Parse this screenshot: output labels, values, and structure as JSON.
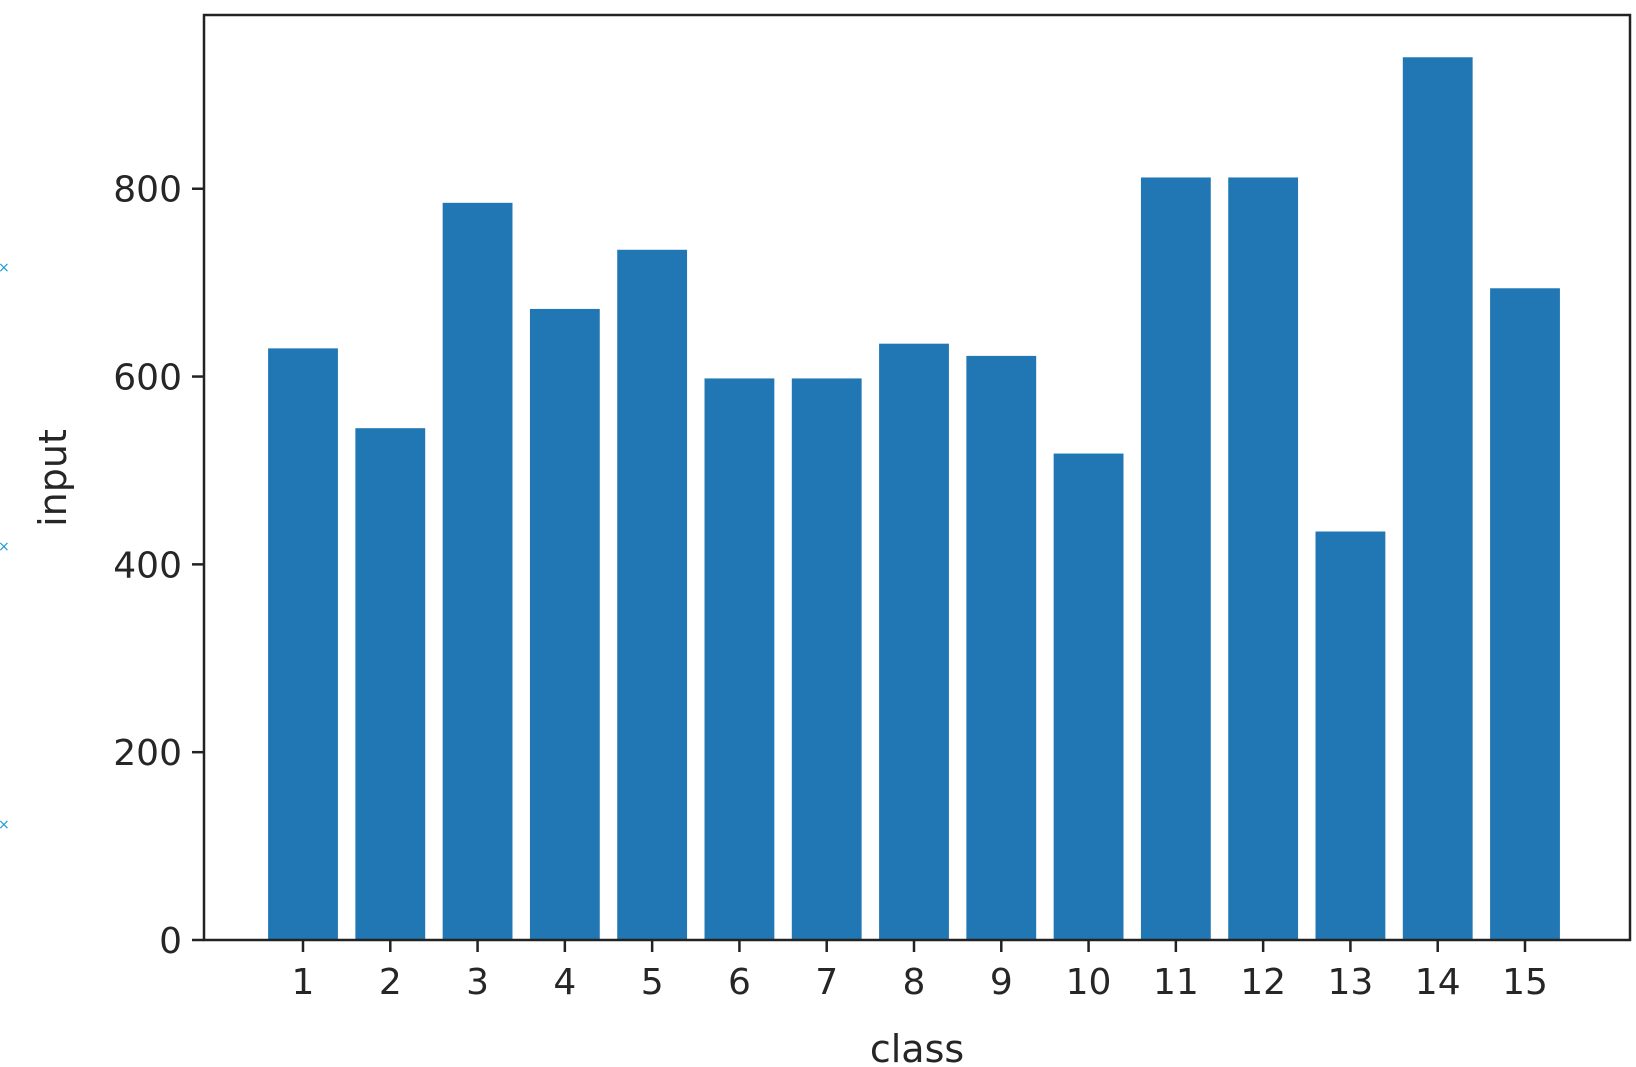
{
  "chart_data": {
    "type": "bar",
    "title": "",
    "xlabel": "class",
    "ylabel": "input",
    "categories": [
      "1",
      "2",
      "3",
      "4",
      "5",
      "6",
      "7",
      "8",
      "9",
      "10",
      "11",
      "12",
      "13",
      "14",
      "15"
    ],
    "values": [
      630,
      545,
      785,
      672,
      735,
      598,
      598,
      635,
      622,
      518,
      812,
      812,
      435,
      940,
      694
    ],
    "ylim": [
      0,
      985
    ],
    "yticks": [
      0,
      200,
      400,
      600,
      800
    ],
    "bar_color": "#2177b3",
    "grid": false,
    "legend": "none"
  },
  "edge_markers": {
    "glyph": "×",
    "color": "#1f9bd7"
  }
}
